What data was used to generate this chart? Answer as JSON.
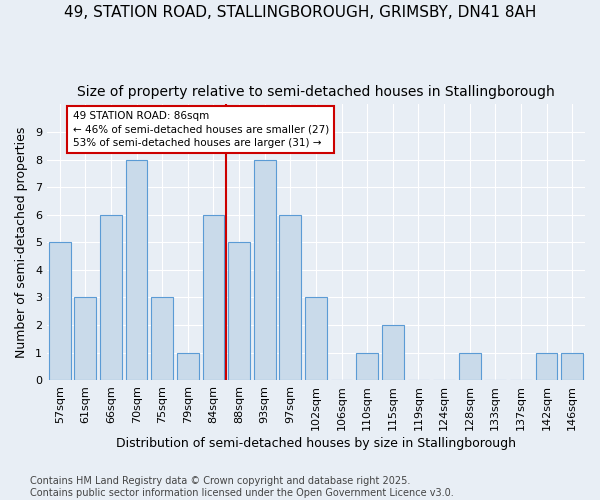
{
  "title": "49, STATION ROAD, STALLINGBOROUGH, GRIMSBY, DN41 8AH",
  "subtitle": "Size of property relative to semi-detached houses in Stallingborough",
  "xlabel": "Distribution of semi-detached houses by size in Stallingborough",
  "ylabel": "Number of semi-detached properties",
  "categories": [
    "57sqm",
    "61sqm",
    "66sqm",
    "70sqm",
    "75sqm",
    "79sqm",
    "84sqm",
    "88sqm",
    "93sqm",
    "97sqm",
    "102sqm",
    "106sqm",
    "110sqm",
    "115sqm",
    "119sqm",
    "124sqm",
    "128sqm",
    "133sqm",
    "137sqm",
    "142sqm",
    "146sqm"
  ],
  "values": [
    5,
    3,
    6,
    8,
    3,
    1,
    6,
    5,
    8,
    6,
    3,
    0,
    1,
    2,
    0,
    0,
    1,
    0,
    0,
    1,
    1
  ],
  "bar_color": "#c9daea",
  "bar_edge_color": "#5b9bd5",
  "vline_x": 6.5,
  "vline_color": "#cc0000",
  "annotation_text": "49 STATION ROAD: 86sqm\n← 46% of semi-detached houses are smaller (27)\n53% of semi-detached houses are larger (31) →",
  "annotation_box_facecolor": "#ffffff",
  "annotation_box_edgecolor": "#cc0000",
  "ylim_max": 10,
  "bg_color": "#e8eef5",
  "footer": "Contains HM Land Registry data © Crown copyright and database right 2025.\nContains public sector information licensed under the Open Government Licence v3.0.",
  "title_fontsize": 11,
  "subtitle_fontsize": 10,
  "xlabel_fontsize": 9,
  "ylabel_fontsize": 9,
  "tick_fontsize": 8,
  "footer_fontsize": 7
}
